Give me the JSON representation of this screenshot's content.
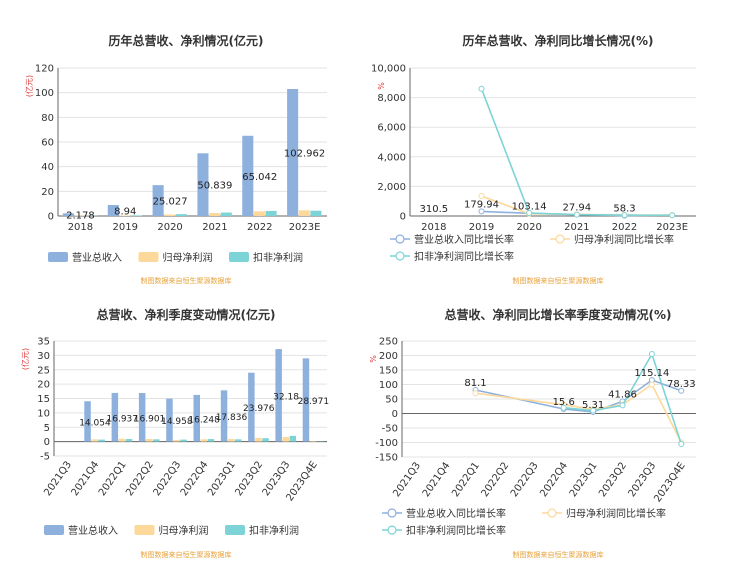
{
  "source_note": "制图数据来自恒生聚源数据库",
  "colors": {
    "revenue": "#8eb0dd",
    "net_profit": "#fcd99b",
    "deducted_profit": "#7dd4d6",
    "axis_unit": "#e03a3a"
  },
  "chart_data": [
    {
      "type": "bar",
      "title": "历年总营收、净利情况(亿元)",
      "ylabel": "(亿元)",
      "ylim": [
        0,
        120
      ],
      "yticks": [
        "0",
        "20",
        "40",
        "60",
        "80",
        "100",
        "120"
      ],
      "categories": [
        "2018",
        "2019",
        "2020",
        "2021",
        "2022",
        "2023E"
      ],
      "data_labels": [
        "2.178",
        "8.94",
        "25.027",
        "50.839",
        "65.042",
        "102.962"
      ],
      "legend_position": "bottom-left",
      "series": [
        {
          "name": "营业总收入",
          "values": [
            2.178,
            8.94,
            25.027,
            50.839,
            65.042,
            102.962
          ]
        },
        {
          "name": "归母净利润",
          "values": [
            0.3,
            0.4,
            1.2,
            2.4,
            3.8,
            4.6
          ]
        },
        {
          "name": "扣非净利润",
          "values": [
            0.2,
            0.5,
            1.5,
            2.8,
            4.1,
            4.3
          ]
        }
      ]
    },
    {
      "type": "line",
      "title": "历年总营收、净利同比增长情况(%)",
      "ylabel": "%",
      "ylim": [
        0,
        10000
      ],
      "yticks": [
        "0",
        "2,000",
        "4,000",
        "6,000",
        "8,000",
        "10,000"
      ],
      "categories": [
        "2018",
        "2019",
        "2020",
        "2021",
        "2022",
        "2023E"
      ],
      "data_labels": [
        "310.5",
        "179.94",
        "103.14",
        "27.94",
        "58.3"
      ],
      "legend_position": "bottom",
      "series": [
        {
          "name": "营业总收入同比增长率",
          "values": [
            null,
            310.5,
            179.94,
            103.14,
            27.94,
            58.3
          ]
        },
        {
          "name": "归母净利润同比增长率",
          "values": [
            null,
            1350,
            150,
            110,
            70,
            60
          ]
        },
        {
          "name": "扣非净利润同比增长率",
          "values": [
            null,
            8600,
            200,
            90,
            60,
            50
          ]
        }
      ]
    },
    {
      "type": "bar",
      "title": "总营收、净利季度变动情况(亿元)",
      "ylabel": "(亿元)",
      "ylim": [
        -5,
        35
      ],
      "yticks": [
        "-5",
        "0",
        "5",
        "10",
        "15",
        "20",
        "25",
        "30",
        "35"
      ],
      "categories": [
        "2021Q3",
        "2021Q4",
        "2022Q1",
        "2022Q2",
        "2022Q3",
        "2022Q4",
        "2023Q1",
        "2023Q2",
        "2023Q3",
        "2023Q4E"
      ],
      "data_labels": [
        "",
        "14.054",
        "16.937",
        "16.901",
        "14.958",
        "16.248",
        "17.836",
        "23.976",
        "32.18",
        "28.971"
      ],
      "legend_position": "bottom-left",
      "series": [
        {
          "name": "营业总收入",
          "values": [
            null,
            14.054,
            16.937,
            16.901,
            14.958,
            16.248,
            17.836,
            23.976,
            32.18,
            28.971
          ]
        },
        {
          "name": "归母净利润",
          "values": [
            null,
            0.8,
            1.0,
            0.9,
            0.6,
            0.8,
            0.9,
            1.3,
            1.6,
            0.2
          ]
        },
        {
          "name": "扣非净利润",
          "values": [
            null,
            0.7,
            0.9,
            0.8,
            0.7,
            0.9,
            0.8,
            1.2,
            2.0,
            0.1
          ]
        }
      ]
    },
    {
      "type": "line",
      "title": "总营收、净利同比增长率季度变动情况(%)",
      "ylabel": "%",
      "ylim": [
        -150,
        250
      ],
      "yticks": [
        "-150",
        "-100",
        "-50",
        "0",
        "50",
        "100",
        "150",
        "200",
        "250"
      ],
      "categories": [
        "2021Q3",
        "2021Q4",
        "2022Q1",
        "2022Q2",
        "2022Q3",
        "2022Q4",
        "2023Q1",
        "2023Q2",
        "2023Q3",
        "2023Q4E"
      ],
      "data_labels": [
        "",
        "",
        "81.1",
        "",
        "",
        "15.6",
        "5.31",
        "41.86",
        "115.14",
        "78.33"
      ],
      "legend_position": "bottom",
      "series": [
        {
          "name": "营业总收入同比增长率",
          "values": [
            null,
            null,
            81.1,
            null,
            null,
            15.6,
            5.31,
            41.86,
            115.14,
            78.33
          ]
        },
        {
          "name": "归母净利润同比增长率",
          "values": [
            null,
            null,
            70,
            null,
            null,
            30,
            15,
            30,
            100,
            -100
          ]
        },
        {
          "name": "扣非净利润同比增长率",
          "values": [
            null,
            null,
            null,
            null,
            null,
            20,
            10,
            28,
            205,
            -105
          ]
        }
      ]
    }
  ]
}
